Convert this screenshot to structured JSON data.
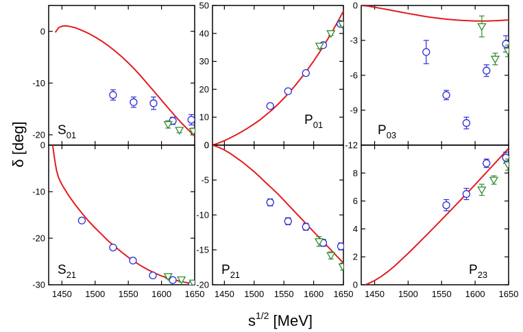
{
  "figure": {
    "xlabel_base": "s",
    "xlabel_exp": "1/2",
    "xlabel_unit": " [MeV]",
    "ylabel": "δ [deg]"
  },
  "colors": {
    "model": "#e31a1c",
    "blue": "#2b2bd6",
    "green": "#2e8b2e"
  },
  "chart_data": [
    {
      "type": "scatter",
      "label_main": "S",
      "label_sub": "01",
      "xlim": [
        1430,
        1650
      ],
      "ylim": [
        -22,
        5
      ],
      "xticks": [
        1450,
        1500,
        1550,
        1600,
        1650
      ],
      "yticks": [
        0,
        -10,
        -20
      ],
      "ytick_labels": [
        "0",
        "-10",
        "-20"
      ],
      "model_x": [
        1440,
        1445,
        1450,
        1455,
        1460,
        1470,
        1480,
        1490,
        1500,
        1510,
        1520,
        1530,
        1540,
        1550,
        1560,
        1570,
        1580,
        1590,
        1600,
        1610,
        1620,
        1630,
        1640,
        1650
      ],
      "model_y": [
        -0.2,
        0.7,
        1.0,
        1.05,
        1.0,
        0.7,
        0.2,
        -0.4,
        -1.1,
        -1.9,
        -2.8,
        -3.8,
        -4.9,
        -6.1,
        -7.4,
        -8.8,
        -10.3,
        -11.8,
        -13.3,
        -14.8,
        -16.3,
        -17.7,
        -19.0,
        -20.3
      ],
      "series": [
        {
          "marker": "circle",
          "x": [
            1527,
            1558,
            1588,
            1617,
            1645
          ],
          "y": [
            -12.3,
            -13.7,
            -13.9,
            -17.3,
            -17.1
          ],
          "err": [
            1.0,
            1.0,
            1.2,
            0.7,
            1.0
          ]
        },
        {
          "marker": "triangle",
          "x": [
            1610,
            1627,
            1648
          ],
          "y": [
            -18.0,
            -19.1,
            -19.3
          ],
          "err": [
            0.7,
            0.5,
            0.6
          ]
        }
      ]
    },
    {
      "type": "scatter",
      "label_main": "P",
      "label_sub": "01",
      "xlim": [
        1430,
        1650
      ],
      "ylim": [
        0,
        50
      ],
      "xticks": [
        1450,
        1500,
        1550,
        1600,
        1650
      ],
      "yticks": [
        0,
        10,
        20,
        30,
        40,
        50
      ],
      "ytick_labels": [
        "0",
        "10",
        "20",
        "30",
        "40",
        "50"
      ],
      "model_x": [
        1430,
        1440,
        1450,
        1460,
        1470,
        1480,
        1490,
        1500,
        1510,
        1520,
        1530,
        1540,
        1550,
        1560,
        1570,
        1580,
        1590,
        1600,
        1610,
        1620,
        1630,
        1640,
        1650
      ],
      "model_y": [
        0.0,
        0.7,
        1.6,
        2.6,
        3.7,
        4.9,
        6.2,
        7.6,
        9.1,
        10.8,
        12.6,
        14.6,
        16.8,
        19.1,
        21.6,
        24.3,
        27.1,
        30.1,
        33.3,
        36.7,
        40.2,
        44.0,
        48.0
      ],
      "series": [
        {
          "marker": "circle",
          "x": [
            1527,
            1557,
            1587,
            1616,
            1645
          ],
          "y": [
            14.0,
            19.3,
            25.8,
            35.8,
            43.4
          ],
          "err": [
            0.6,
            0.7,
            0.7,
            0.7,
            0.9
          ]
        },
        {
          "marker": "triangle",
          "x": [
            1610,
            1629,
            1648
          ],
          "y": [
            35.5,
            40.0,
            43.3
          ],
          "err": [
            1.0,
            0.7,
            0.6
          ]
        }
      ]
    },
    {
      "type": "scatter",
      "label_main": "P",
      "label_sub": "03",
      "xlim": [
        1430,
        1650
      ],
      "ylim": [
        -12,
        0
      ],
      "xticks": [
        1450,
        1500,
        1550,
        1600,
        1650
      ],
      "yticks": [
        0,
        -3,
        -6,
        -9,
        -12
      ],
      "ytick_labels": [
        "0",
        "-3",
        "-6",
        "-9",
        "-12"
      ],
      "model_x": [
        1430,
        1440,
        1450,
        1460,
        1470,
        1480,
        1490,
        1500,
        1510,
        1520,
        1530,
        1540,
        1550,
        1560,
        1570,
        1580,
        1590,
        1600,
        1610,
        1620,
        1630,
        1640,
        1650
      ],
      "model_y": [
        0.0,
        -0.05,
        -0.15,
        -0.25,
        -0.36,
        -0.47,
        -0.58,
        -0.69,
        -0.79,
        -0.89,
        -0.98,
        -1.06,
        -1.13,
        -1.19,
        -1.24,
        -1.28,
        -1.31,
        -1.33,
        -1.34,
        -1.33,
        -1.31,
        -1.28,
        -1.24
      ],
      "series": [
        {
          "marker": "circle",
          "x": [
            1527,
            1557,
            1587,
            1617,
            1646
          ],
          "y": [
            -4.0,
            -7.7,
            -10.1,
            -5.6,
            -3.3
          ],
          "err": [
            1.0,
            0.4,
            0.5,
            0.5,
            0.7
          ]
        },
        {
          "marker": "triangle",
          "x": [
            1610,
            1630,
            1649
          ],
          "y": [
            -1.8,
            -4.6,
            -3.9
          ],
          "err": [
            0.9,
            0.5,
            0.5
          ]
        }
      ]
    },
    {
      "type": "scatter",
      "label_main": "S",
      "label_sub": "21",
      "xlim": [
        1430,
        1650
      ],
      "ylim": [
        -30,
        0
      ],
      "xticks": [
        1450,
        1500,
        1550,
        1600,
        1650
      ],
      "yticks": [
        0,
        -10,
        -20,
        -30
      ],
      "ytick_labels": [
        "0",
        "-10",
        "-20",
        "-30"
      ],
      "model_x": [
        1436,
        1438,
        1440,
        1442,
        1445,
        1450,
        1460,
        1470,
        1480,
        1490,
        1500,
        1510,
        1520,
        1530,
        1540,
        1550,
        1560,
        1570,
        1580,
        1590,
        1600,
        1610,
        1620,
        1630,
        1640,
        1650
      ],
      "model_y": [
        0.0,
        -2.0,
        -4.0,
        -5.5,
        -7.0,
        -8.5,
        -10.8,
        -12.8,
        -14.6,
        -16.3,
        -17.8,
        -19.2,
        -20.6,
        -21.8,
        -23.0,
        -24.1,
        -25.1,
        -26.0,
        -26.8,
        -27.5,
        -28.1,
        -28.6,
        -29.0,
        -29.3,
        -29.6,
        -29.8
      ],
      "series": [
        {
          "marker": "circle",
          "x": [
            1480,
            1527,
            1557,
            1587,
            1617,
            1646
          ],
          "y": [
            -16.2,
            -22.0,
            -24.8,
            -28.0,
            -29.0,
            -29.9
          ],
          "err": [
            0.4,
            0.4,
            0.4,
            0.4,
            0.4,
            0.4
          ]
        },
        {
          "marker": "triangle",
          "x": [
            1610,
            1630,
            1648
          ],
          "y": [
            -28.2,
            -28.9,
            -29.6
          ],
          "err": [
            0.5,
            0.5,
            0.5
          ]
        }
      ]
    },
    {
      "type": "scatter",
      "label_main": "P",
      "label_sub": "21",
      "xlim": [
        1430,
        1650
      ],
      "ylim": [
        -20,
        0
      ],
      "xticks": [
        1450,
        1500,
        1550,
        1600,
        1650
      ],
      "yticks": [
        0,
        -5,
        -10,
        -15,
        -20
      ],
      "ytick_labels": [
        "0",
        "-5",
        "-10",
        "-15",
        "-20"
      ],
      "model_x": [
        1430,
        1440,
        1450,
        1460,
        1470,
        1480,
        1490,
        1500,
        1510,
        1520,
        1530,
        1540,
        1550,
        1560,
        1570,
        1580,
        1590,
        1600,
        1610,
        1620,
        1630,
        1640,
        1650
      ],
      "model_y": [
        0.0,
        -0.3,
        -0.7,
        -1.2,
        -1.8,
        -2.4,
        -3.1,
        -3.8,
        -4.6,
        -5.4,
        -6.2,
        -7.0,
        -7.9,
        -8.8,
        -9.7,
        -10.6,
        -11.5,
        -12.4,
        -13.3,
        -14.2,
        -15.1,
        -16.0,
        -16.9
      ],
      "series": [
        {
          "marker": "circle",
          "x": [
            1527,
            1557,
            1587,
            1616,
            1646
          ],
          "y": [
            -8.2,
            -10.9,
            -11.7,
            -14.0,
            -14.5
          ],
          "err": [
            0.5,
            0.5,
            0.5,
            0.5,
            0.5
          ]
        },
        {
          "marker": "triangle",
          "x": [
            1609,
            1629,
            1649
          ],
          "y": [
            -13.8,
            -15.8,
            -17.4
          ],
          "err": [
            0.7,
            0.5,
            0.5
          ]
        }
      ]
    },
    {
      "type": "scatter",
      "label_main": "P",
      "label_sub": "23",
      "xlim": [
        1430,
        1650
      ],
      "ylim": [
        0,
        10
      ],
      "xticks": [
        1450,
        1500,
        1550,
        1600,
        1650
      ],
      "yticks": [
        0,
        2,
        4,
        6,
        8
      ],
      "ytick_labels": [
        "0",
        "2",
        "4",
        "6",
        "8"
      ],
      "model_x": [
        1436,
        1440,
        1450,
        1460,
        1470,
        1480,
        1490,
        1500,
        1510,
        1520,
        1530,
        1540,
        1550,
        1560,
        1570,
        1580,
        1590,
        1600,
        1610,
        1620,
        1630,
        1640,
        1650
      ],
      "model_y": [
        0.0,
        0.08,
        0.3,
        0.6,
        0.95,
        1.35,
        1.8,
        2.25,
        2.72,
        3.2,
        3.68,
        4.17,
        4.66,
        5.15,
        5.65,
        6.15,
        6.66,
        7.17,
        7.69,
        8.21,
        8.73,
        9.25,
        9.77
      ],
      "series": [
        {
          "marker": "circle",
          "x": [
            1557,
            1587,
            1617,
            1646
          ],
          "y": [
            5.7,
            6.5,
            8.7,
            9.1
          ],
          "err": [
            0.4,
            0.4,
            0.3,
            0.4
          ]
        },
        {
          "marker": "triangle",
          "x": [
            1610,
            1628,
            1649
          ],
          "y": [
            6.8,
            7.5,
            8.6
          ],
          "err": [
            0.4,
            0.3,
            0.4
          ]
        }
      ]
    }
  ]
}
